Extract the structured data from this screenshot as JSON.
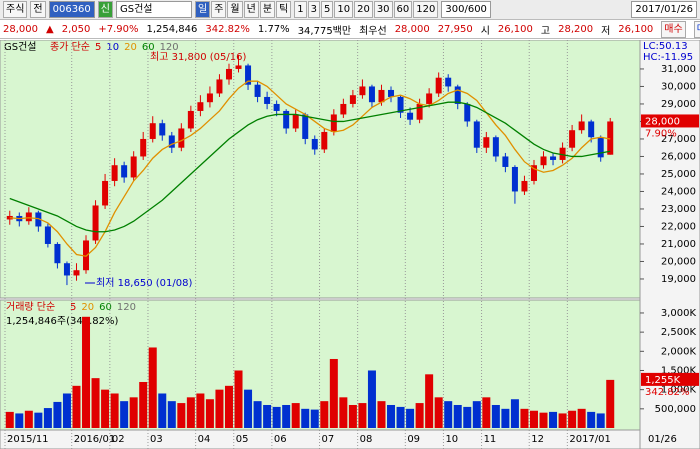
{
  "toolbar": {
    "market": "주식",
    "mode": "전",
    "code": "006360",
    "badge": "신",
    "name": "GS건설",
    "periods": [
      "일",
      "주",
      "월",
      "년",
      "분",
      "틱"
    ],
    "intervals": [
      "1",
      "3",
      "5",
      "10",
      "20",
      "30",
      "60",
      "120"
    ],
    "count": "300/600",
    "date": "2017/01/26"
  },
  "quote": {
    "price": "28,000",
    "arrow": "▲",
    "change": "2,050",
    "rate": "+7.90%",
    "volume": "1,254,846",
    "volume_ratio": "342.82%",
    "turnover": "1.77%",
    "amount": "34,775백만",
    "best": "최우선",
    "ask": "28,000",
    "bid": "27,950",
    "open_label": "시",
    "open": "26,100",
    "high_label": "고",
    "high": "28,200",
    "low_label": "저",
    "low": "26,100",
    "buy": "매수",
    "sell": "매도"
  },
  "chart_data": [
    {
      "type": "candlestick",
      "title": "GS건설",
      "legend": [
        {
          "name": "종가 단순",
          "color": "#d00000"
        },
        {
          "name": "5",
          "color": "#d00000"
        },
        {
          "name": "10",
          "color": "#0000d0"
        },
        {
          "name": "20",
          "color": "#e09000"
        },
        {
          "name": "60",
          "color": "#008000"
        },
        {
          "name": "120",
          "color": "#707070"
        }
      ],
      "annotations": [
        {
          "text": "최고 31,800 (05/16)",
          "color": "#d00000"
        },
        {
          "text": "최저 18,650 (01/08)",
          "color": "#0000d0"
        }
      ],
      "lc": "LC:50.13",
      "hc": "HC:-11.95",
      "price_label": "28,000",
      "change_label": "7.90%",
      "up_color": "#e00000",
      "down_color": "#0030d0",
      "open": [
        22400,
        22600,
        22300,
        22800,
        22000,
        21000,
        19900,
        19200,
        19500,
        21200,
        23200,
        24600,
        25500,
        24800,
        26000,
        27000,
        27900,
        27200,
        26500,
        27600,
        28600,
        29100,
        29600,
        30400,
        31000,
        31200,
        30100,
        29400,
        29000,
        28600,
        27600,
        28400,
        27000,
        26400,
        27400,
        28400,
        29000,
        29500,
        30000,
        29100,
        29800,
        29400,
        28500,
        28100,
        29000,
        29600,
        30500,
        30000,
        29000,
        28000,
        26500,
        27100,
        26000,
        25400,
        24000,
        24600,
        25500,
        26000,
        25800,
        26500,
        27500,
        28000,
        27100,
        26100
      ],
      "high": [
        22900,
        22800,
        23100,
        22900,
        22200,
        21100,
        20000,
        19900,
        21500,
        23500,
        25000,
        25900,
        25700,
        26300,
        27400,
        28300,
        28100,
        27400,
        27900,
        28900,
        29500,
        30000,
        30700,
        31300,
        31800,
        31300,
        30300,
        29700,
        29200,
        28700,
        28700,
        28500,
        27200,
        27600,
        28700,
        29300,
        29800,
        30400,
        30100,
        30100,
        30000,
        29500,
        28800,
        29300,
        29900,
        30800,
        30700,
        30100,
        29100,
        28100,
        27400,
        27200,
        26200,
        25500,
        24900,
        25800,
        26300,
        26200,
        26800,
        27800,
        28400,
        28100,
        27200,
        28200
      ],
      "low": [
        22100,
        22000,
        22100,
        21700,
        20800,
        19600,
        18650,
        18900,
        19300,
        21000,
        23000,
        24300,
        24500,
        24600,
        25800,
        26800,
        26900,
        26200,
        26300,
        27400,
        28300,
        28800,
        29400,
        30100,
        30800,
        29800,
        29100,
        28700,
        28300,
        27300,
        27400,
        26700,
        26100,
        26200,
        27200,
        28200,
        28800,
        29300,
        28800,
        28900,
        29100,
        28200,
        27800,
        27900,
        28800,
        29400,
        29700,
        28700,
        27700,
        26200,
        26200,
        25700,
        25100,
        23300,
        23800,
        24400,
        25300,
        25500,
        25600,
        26300,
        27300,
        26800,
        25700,
        26100
      ],
      "close": [
        22600,
        22300,
        22800,
        22000,
        21000,
        19900,
        19200,
        19500,
        21200,
        23200,
        24600,
        25500,
        24800,
        26000,
        27000,
        27900,
        27200,
        26500,
        27600,
        28600,
        29100,
        29600,
        30400,
        31000,
        31200,
        30100,
        29400,
        29000,
        28600,
        27600,
        28400,
        27000,
        26400,
        27400,
        28400,
        29000,
        29500,
        30000,
        29100,
        29800,
        29400,
        28500,
        28100,
        29000,
        29600,
        30500,
        30000,
        29000,
        28000,
        26500,
        27100,
        26000,
        25400,
        24000,
        24600,
        25500,
        26000,
        25800,
        26500,
        27500,
        28000,
        27100,
        25950,
        28000
      ],
      "series": [
        {
          "name": "20",
          "color": "#e09000",
          "values": [
            22500,
            22450,
            22500,
            22450,
            22200,
            21700,
            21000,
            20400,
            20300,
            20800,
            21700,
            22800,
            23700,
            24600,
            25200,
            25900,
            26400,
            26700,
            26900,
            27200,
            27600,
            28100,
            28600,
            29300,
            29900,
            30300,
            30300,
            30000,
            29500,
            29000,
            28700,
            28400,
            28000,
            27600,
            27400,
            27500,
            27800,
            28300,
            28800,
            29100,
            29400,
            29500,
            29300,
            29000,
            28900,
            29200,
            29600,
            29800,
            29600,
            29200,
            28500,
            27800,
            27200,
            26400,
            25700,
            25300,
            25100,
            25200,
            25500,
            25900,
            26500,
            27000,
            27100,
            27000
          ]
        },
        {
          "name": "60",
          "color": "#008000",
          "values": [
            23600,
            23400,
            23200,
            23000,
            22800,
            22600,
            22300,
            22000,
            21800,
            21700,
            21700,
            21800,
            22000,
            22300,
            22700,
            23100,
            23500,
            24000,
            24500,
            25000,
            25500,
            26000,
            26500,
            27000,
            27400,
            27800,
            28100,
            28300,
            28400,
            28400,
            28400,
            28300,
            28200,
            28100,
            28000,
            28000,
            28100,
            28200,
            28300,
            28400,
            28500,
            28600,
            28700,
            28800,
            28900,
            29000,
            29100,
            29100,
            29000,
            28800,
            28500,
            28200,
            27900,
            27500,
            27100,
            26700,
            26400,
            26200,
            26100,
            26000,
            26000,
            26100,
            26200,
            26300
          ]
        }
      ],
      "ylim": [
        17970,
        32540
      ],
      "yticks": [
        {
          "value": 19000,
          "label": "19,000"
        },
        {
          "value": 20000,
          "label": "20,000"
        },
        {
          "value": 21000,
          "label": "21,000"
        },
        {
          "value": 22000,
          "label": "22,000"
        },
        {
          "value": 23000,
          "label": "23,000"
        },
        {
          "value": 24000,
          "label": "24,000"
        },
        {
          "value": 25000,
          "label": "25,000"
        },
        {
          "value": 26000,
          "label": "26,000"
        },
        {
          "value": 27000,
          "label": "27,000"
        },
        {
          "value": 28000,
          "label": "28,000"
        },
        {
          "value": 29000,
          "label": "29,000"
        },
        {
          "value": 30000,
          "label": "30,000"
        },
        {
          "value": 31000,
          "label": "31,000"
        }
      ]
    },
    {
      "type": "bar",
      "title": "거래량 단순",
      "legend": [
        {
          "name": "5",
          "color": "#d00000"
        },
        {
          "name": "20",
          "color": "#e09000"
        },
        {
          "name": "60",
          "color": "#008000"
        },
        {
          "name": "120",
          "color": "#707070"
        }
      ],
      "subtitle": "1,254,846주(342.82%)",
      "last_label": "1,255K",
      "ratio_label": "342.82%",
      "end_label": "01/26",
      "categories": [
        "2015/11",
        null,
        null,
        null,
        null,
        null,
        null,
        "2016/01",
        null,
        null,
        null,
        "02",
        null,
        null,
        null,
        "03",
        null,
        null,
        null,
        null,
        "04",
        null,
        null,
        null,
        "05",
        null,
        null,
        null,
        "06",
        null,
        null,
        null,
        null,
        "07",
        null,
        null,
        null,
        "08",
        null,
        null,
        null,
        null,
        "09",
        null,
        null,
        null,
        "10",
        null,
        null,
        null,
        "11",
        null,
        null,
        null,
        null,
        "12",
        null,
        null,
        null,
        "2017/01",
        null,
        null,
        null,
        null
      ],
      "values": [
        420000,
        380000,
        450000,
        400000,
        520000,
        680000,
        900000,
        1100000,
        2900000,
        1300000,
        1000000,
        900000,
        700000,
        800000,
        1200000,
        2100000,
        900000,
        700000,
        650000,
        800000,
        900000,
        750000,
        1000000,
        1100000,
        1500000,
        1000000,
        700000,
        600000,
        550000,
        600000,
        650000,
        500000,
        480000,
        700000,
        1800000,
        800000,
        600000,
        650000,
        1500000,
        700000,
        600000,
        550000,
        500000,
        650000,
        1400000,
        800000,
        700000,
        600000,
        550000,
        700000,
        800000,
        600000,
        500000,
        750000,
        500000,
        450000,
        400000,
        420000,
        380000,
        450000,
        500000,
        420000,
        380000,
        1254846
      ],
      "ylim": [
        0,
        3286000
      ],
      "yticks": [
        {
          "value": 500000,
          "label": "500,000"
        },
        {
          "value": 1000000,
          "label": "1,000K"
        },
        {
          "value": 1500000,
          "label": "1,500K"
        },
        {
          "value": 2000000,
          "label": "2,000K"
        },
        {
          "value": 2500000,
          "label": "2,500K"
        },
        {
          "value": 3000000,
          "label": "3,000K"
        }
      ]
    }
  ]
}
